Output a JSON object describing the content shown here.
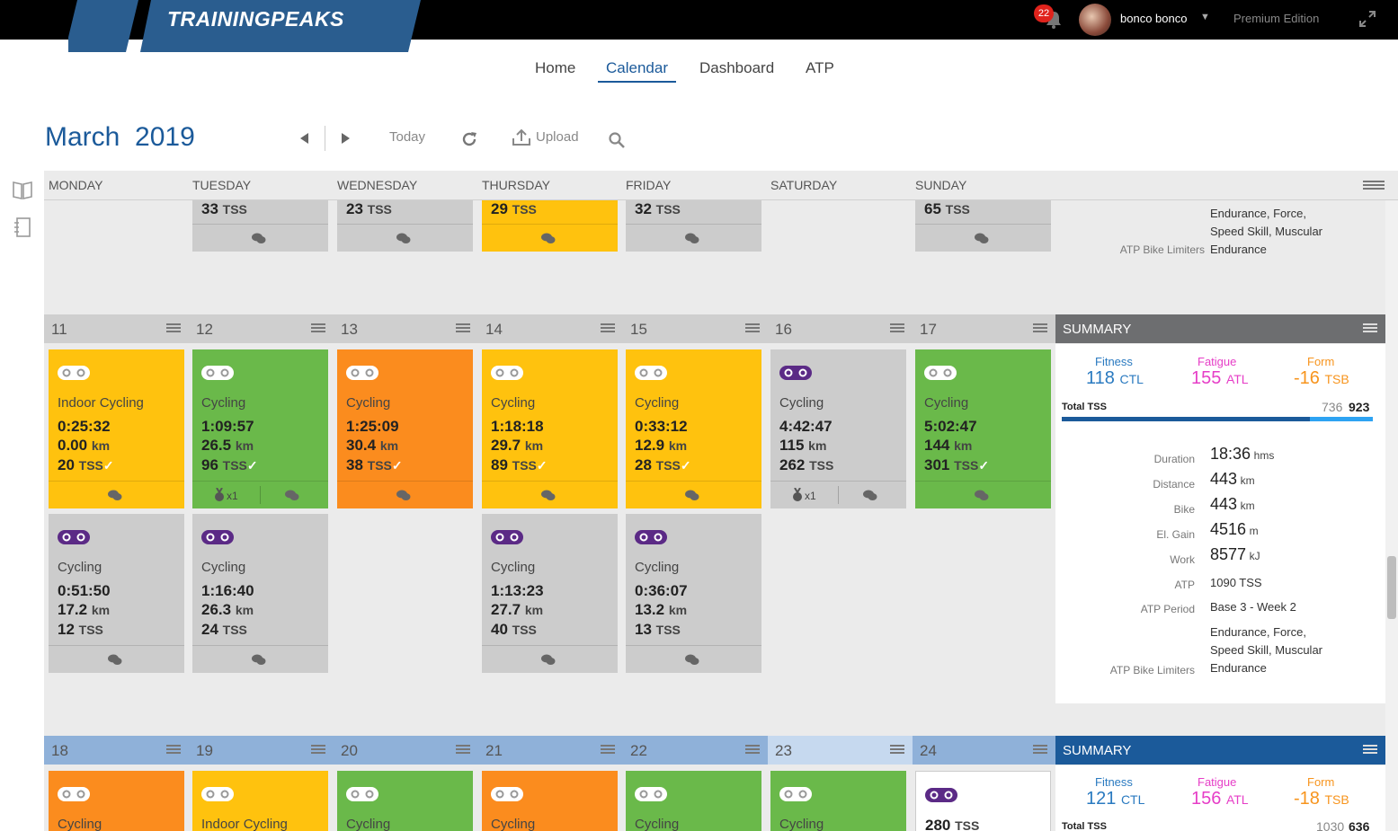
{
  "header": {
    "logo_text": "TRAININGPEAKS",
    "notification_count": "22",
    "username": "bonco bonco",
    "edition": "Premium Edition"
  },
  "nav": {
    "home": "Home",
    "calendar": "Calendar",
    "dashboard": "Dashboard",
    "atp": "ATP"
  },
  "toolbar": {
    "month": "March",
    "year": "2019",
    "today": "Today",
    "upload": "Upload"
  },
  "days": [
    "MONDAY",
    "TUESDAY",
    "WEDNESDAY",
    "THURSDAY",
    "FRIDAY",
    "SATURDAY",
    "SUNDAY"
  ],
  "top_partial": {
    "tues_tss": "33",
    "wed_tss": "23",
    "thu_tss": "29",
    "fri_tss": "32",
    "sun_tss": "65",
    "tss_unit": "TSS",
    "limiters_text1": "Endurance, Force,",
    "limiters_text2": "Speed Skill, Muscular",
    "limiters_label": "ATP Bike Limiters",
    "limiters_value": "Endurance"
  },
  "week2": {
    "dates": [
      "11",
      "12",
      "13",
      "14",
      "15",
      "16",
      "17"
    ],
    "summary_title": "SUMMARY",
    "row1": [
      {
        "title": "Indoor Cycling",
        "duration": "0:25:32",
        "distance": "0.00",
        "tss": "20"
      },
      {
        "title": "Cycling",
        "duration": "1:09:57",
        "distance": "26.5",
        "tss": "96",
        "medal": "x1"
      },
      {
        "title": "Cycling",
        "duration": "1:25:09",
        "distance": "30.4",
        "tss": "38"
      },
      {
        "title": "Cycling",
        "duration": "1:18:18",
        "distance": "29.7",
        "tss": "89"
      },
      {
        "title": "Cycling",
        "duration": "0:33:12",
        "distance": "12.9",
        "tss": "28"
      },
      {
        "title": "Cycling",
        "duration": "4:42:47",
        "distance": "115",
        "tss": "262",
        "medal": "x1"
      },
      {
        "title": "Cycling",
        "duration": "5:02:47",
        "distance": "144",
        "tss": "301"
      }
    ],
    "row2": [
      {
        "title": "Cycling",
        "duration": "0:51:50",
        "distance": "17.2",
        "tss": "12"
      },
      {
        "title": "Cycling",
        "duration": "1:16:40",
        "distance": "26.3",
        "tss": "24"
      },
      {
        "title": "Cycling",
        "duration": "1:13:23",
        "distance": "27.7",
        "tss": "40"
      },
      {
        "title": "Cycling",
        "duration": "0:36:07",
        "distance": "13.2",
        "tss": "13"
      }
    ],
    "summary": {
      "fitness_label": "Fitness",
      "fitness_value": "118",
      "fitness_unit": "CTL",
      "fatigue_label": "Fatigue",
      "fatigue_value": "155",
      "fatigue_unit": "ATL",
      "form_label": "Form",
      "form_value": "-16",
      "form_unit": "TSB",
      "total_tss_label": "Total TSS",
      "total_tss_planned": "736",
      "total_tss_done": "923",
      "duration_label": "Duration",
      "duration_value": "18:36",
      "duration_unit": "hms",
      "distance_label": "Distance",
      "distance_value": "443",
      "distance_unit": "km",
      "bike_label": "Bike",
      "bike_value": "443",
      "bike_unit": "km",
      "elgain_label": "El. Gain",
      "elgain_value": "4516",
      "elgain_unit": "m",
      "work_label": "Work",
      "work_value": "8577",
      "work_unit": "kJ",
      "atp_label": "ATP",
      "atp_value": "1090 TSS",
      "atp_period_label": "ATP Period",
      "atp_period_value": "Base 3 - Week 2",
      "limiters_text1": "Endurance, Force,",
      "limiters_text2": "Speed Skill, Muscular",
      "limiters_label": "ATP Bike Limiters",
      "limiters_value": "Endurance"
    }
  },
  "week3": {
    "dates": [
      "18",
      "19",
      "20",
      "21",
      "22",
      "23",
      "24"
    ],
    "summary_title": "SUMMARY",
    "titles": [
      "Cycling",
      "Indoor Cycling",
      "Cycling",
      "Cycling",
      "Cycling",
      "Cycling"
    ],
    "sun_tss": "280",
    "summary": {
      "fitness_label": "Fitness",
      "fitness_value": "121",
      "fitness_unit": "CTL",
      "fatigue_label": "Fatigue",
      "fatigue_value": "156",
      "fatigue_unit": "ATL",
      "form_label": "Form",
      "form_value": "-18",
      "form_unit": "TSB",
      "total_tss_label": "Total TSS",
      "total_tss_planned": "1030",
      "total_tss_done": "636"
    }
  },
  "units": {
    "km": "km",
    "tss": "TSS"
  },
  "colors": {
    "yellow": "#ffc20e",
    "green": "#6ab94a",
    "orange": "#fb8c1e",
    "grey": "#cccccc",
    "brand_blue": "#1b5a9a",
    "purple": "#5b2a86"
  }
}
